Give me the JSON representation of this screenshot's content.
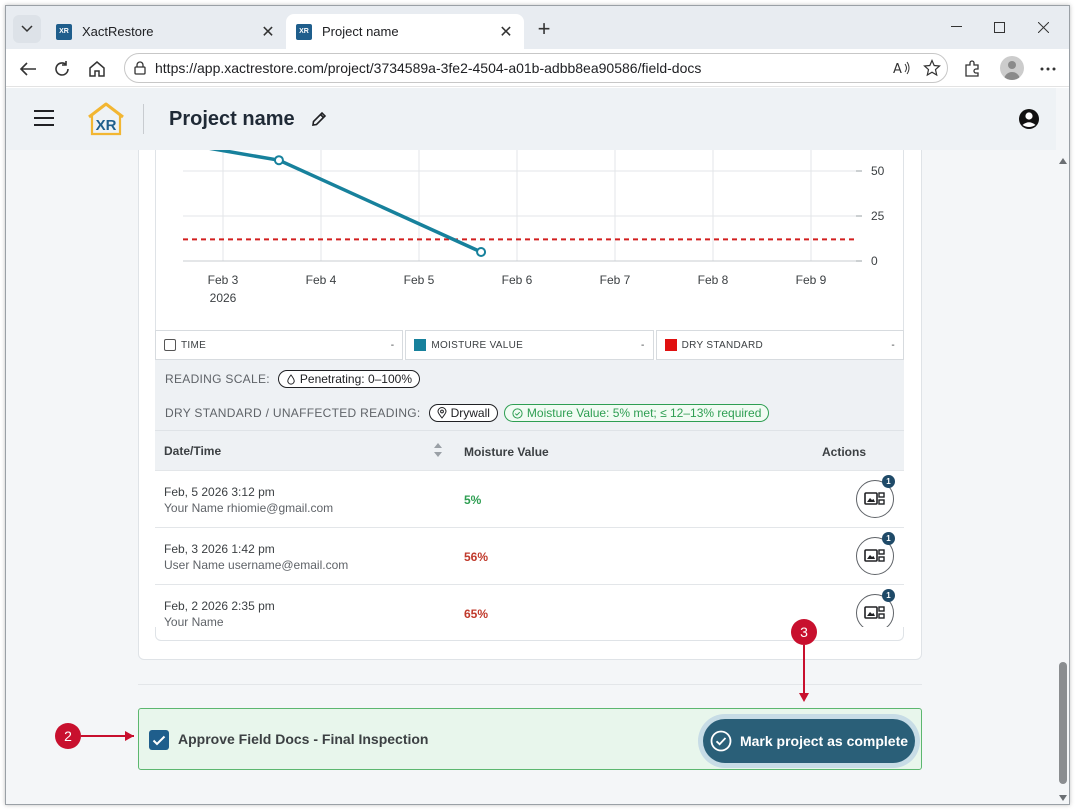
{
  "browser": {
    "tabs": [
      {
        "title": "XactRestore",
        "active": false
      },
      {
        "title": "Project name",
        "active": true
      }
    ],
    "url": "https://app.xactrestore.com/project/3734589a-3fe2-4504-a01b-adbb8ea90586/field-docs"
  },
  "header": {
    "logo_text": "XR",
    "project_title": "Project name"
  },
  "chart_data": {
    "type": "line",
    "x_ticks": [
      "Feb 3",
      "Feb 4",
      "Feb 5",
      "Feb 6",
      "Feb 7",
      "Feb 8",
      "Feb 9"
    ],
    "x_tick_year": "2026",
    "y_ticks": [
      50,
      25,
      0
    ],
    "series": [
      {
        "name": "MOISTURE VALUE",
        "color": "#17819c",
        "points": [
          {
            "x": "2026-02-02 14:35",
            "y": 65
          },
          {
            "x": "2026-02-03 13:42",
            "y": 56
          },
          {
            "x": "2026-02-05 15:12",
            "y": 5
          }
        ]
      },
      {
        "name": "DRY STANDARD",
        "color": "#d21f1f",
        "style": "dashed",
        "y": 12
      }
    ]
  },
  "legend": [
    {
      "label": "TIME",
      "value": "-",
      "color": "#ffffff"
    },
    {
      "label": "MOISTURE VALUE",
      "value": "-",
      "color": "#17819c"
    },
    {
      "label": "DRY STANDARD",
      "value": "-",
      "color": "#e01010"
    }
  ],
  "scale": {
    "reading_scale_label": "READING SCALE:",
    "reading_scale_chip": "Penetrating: 0–100%",
    "dry_standard_label": "DRY STANDARD / UNAFFECTED READING:",
    "material_chip": "Drywall",
    "status_chip": "Moisture Value: 5% met; ≤ 12–13% required"
  },
  "table": {
    "headers": {
      "date": "Date/Time",
      "moisture": "Moisture Value",
      "actions": "Actions"
    },
    "rows": [
      {
        "datetime": "Feb, 5 2026 3:12 pm",
        "user": "Your Name rhiomie@gmail.com",
        "value": "5%",
        "value_color": "#2e9e52",
        "badge": "1"
      },
      {
        "datetime": "Feb, 3 2026 1:42 pm",
        "user": "User Name username@email.com",
        "value": "56%",
        "value_color": "#c0392b",
        "badge": "1"
      },
      {
        "datetime": "Feb, 2 2026 2:35 pm",
        "user": "Your Name",
        "value": "65%",
        "value_color": "#c0392b",
        "badge": "1"
      }
    ]
  },
  "approve": {
    "label": "Approve Field Docs - Final Inspection",
    "checked": true,
    "button_label": "Mark project as complete"
  },
  "callouts": [
    "2",
    "3"
  ]
}
